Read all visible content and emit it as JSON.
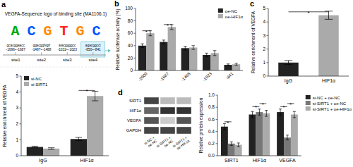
{
  "chart_data": [
    {
      "type": "sequence_logo",
      "title": "a",
      "subtitle": "VEGFA-Sequence logo of binding site (MA1106.1)",
      "categories": [
        "A",
        "C",
        "G",
        "T",
        "G",
        "C"
      ],
      "colors": [
        "#00aa00",
        "#0055ff",
        "#ff8800",
        "#ff2222",
        "#ff8800",
        "#0055ff"
      ]
    },
    {
      "type": "site_map",
      "categories": [
        "site1",
        "site2",
        "site3",
        "site4"
      ],
      "annotations": [
        "gcacggaacc\n-1696~-1687",
        "ggacggNgtf\n-1497~-1488",
        "atacggggcc\n-1032~-1023",
        "agacggcct\n-850~-841"
      ]
    },
    {
      "type": "bar",
      "title": "b",
      "categories": [
        "-2000",
        "-1687",
        "-1488",
        "-1023",
        "-841"
      ],
      "series": [
        {
          "name": "oe-NC",
          "color": "#222222",
          "values": [
            40,
            46,
            36,
            25,
            9
          ],
          "errors": [
            3,
            3,
            3,
            3,
            1.5
          ]
        },
        {
          "name": "oe-HIF1α",
          "color": "#aaaaaa",
          "values": [
            60,
            70,
            37,
            28,
            10
          ],
          "errors": [
            4,
            4,
            3,
            4,
            1.5
          ]
        }
      ],
      "ylabel": "Relative luciferase activity (%)",
      "ylim": [
        0,
        100
      ],
      "yticks": [
        0,
        20,
        40,
        60,
        80,
        100
      ],
      "legend": "upper right",
      "grid": false,
      "annotations": [
        {
          "text": "*",
          "categories": [
            "-2000"
          ],
          "y": 64
        },
        {
          "text": "*",
          "categories": [
            "-1687"
          ],
          "y": 74
        }
      ]
    },
    {
      "type": "bar",
      "title": "c",
      "categories": [
        "IgG",
        "HIF1α"
      ],
      "values": [
        1.0,
        4.5
      ],
      "errors": [
        0.15,
        0.3
      ],
      "colors": [
        "#222222",
        "#aaaaaa"
      ],
      "ylabel": "Relative enrichment of VEGFA",
      "ylim": [
        0,
        5
      ],
      "yticks": [
        0,
        1,
        2,
        3,
        4,
        5
      ],
      "grid": false,
      "annotations": [
        {
          "text": "*",
          "categories": [
            "IgG",
            "HIF1α"
          ],
          "y": 4.75
        }
      ]
    },
    {
      "type": "bar",
      "categories": [
        "IgG",
        "HIF1α"
      ],
      "series": [
        {
          "name": "si-NC",
          "color": "#222222",
          "values": [
            0.55,
            1.05
          ],
          "errors": [
            0.05,
            0.1
          ]
        },
        {
          "name": "si-SIRT1",
          "color": "#aaaaaa",
          "values": [
            0.45,
            3.75
          ],
          "errors": [
            0.05,
            0.3
          ]
        }
      ],
      "ylabel": "Relative enrichment of VEGFA",
      "ylim": [
        0,
        5
      ],
      "yticks": [
        0,
        1,
        2,
        3,
        4,
        5
      ],
      "legend": "upper left",
      "grid": false,
      "annotations": [
        {
          "text": "*",
          "categories": [
            "HIF1α"
          ],
          "y": 4.1
        }
      ]
    },
    {
      "type": "western_blot",
      "title": "d",
      "categories": [
        "SIRT1",
        "HIF1α",
        "VEGFA",
        "GAPDH"
      ],
      "series": [
        {
          "name": "si-NC +\noe-NC",
          "colors": [
            "#444444",
            "#666666",
            "#555555",
            "#444444"
          ]
        },
        {
          "name": "si-SIRT1 +\noe-NC",
          "colors": [
            "#bbbbbb",
            "#333333",
            "#cccccc",
            "#444444"
          ]
        },
        {
          "name": "si-SIRT1 +\noe-HIF1α",
          "colors": [
            "#bbbbbb",
            "#333333",
            "#555555",
            "#444444"
          ]
        }
      ]
    },
    {
      "type": "bar",
      "categories": [
        "SIRT1",
        "HIF1α",
        "VEGFA"
      ],
      "series": [
        {
          "name": "si-NC + oe-NC",
          "color": "#222222",
          "values": [
            0.48,
            0.68,
            0.72
          ],
          "errors": [
            0.05,
            0.05,
            0.05
          ]
        },
        {
          "name": "si-SIRT1 + oe-NC",
          "color": "#777777",
          "values": [
            0.2,
            0.72,
            0.3
          ],
          "errors": [
            0.03,
            0.05,
            0.04
          ]
        },
        {
          "name": "si-SIRT1 + oe-HIF1α",
          "color": "#aaaaaa",
          "values": [
            0.18,
            0.7,
            0.68
          ],
          "errors": [
            0.03,
            0.05,
            0.05
          ]
        }
      ],
      "ylabel": "Relative protein expression",
      "ylim": [
        0,
        1.0
      ],
      "yticks": [
        {
          "value": 0,
          "label": "0.0"
        },
        0.2,
        0.4,
        0.6,
        0.8,
        {
          "value": 1.0,
          "label": "1.0"
        }
      ],
      "legend": "upper right",
      "grid": false,
      "annotations": [
        {
          "text": "*",
          "categories": [
            "SIRT1"
          ],
          "series": [
            "si-NC + oe-NC",
            "si-SIRT1 + oe-NC"
          ],
          "y": 0.56
        },
        {
          "text": "*",
          "categories": [
            "HIF1α"
          ],
          "series": [
            "si-NC + oe-NC",
            "si-SIRT1 + oe-NC"
          ],
          "y": 0.81
        },
        {
          "text": "*",
          "categories": [
            "HIF1α"
          ],
          "series": [
            "si-SIRT1 + oe-NC",
            "si-SIRT1 + oe-HIF1α"
          ],
          "y": 0.86
        },
        {
          "text": "*",
          "categories": [
            "VEGFA"
          ],
          "series": [
            "si-NC + oe-NC",
            "si-SIRT1 + oe-NC"
          ],
          "y": 0.81
        },
        {
          "text": "*",
          "categories": [
            "VEGFA"
          ],
          "series": [
            "si-SIRT1 + oe-NC",
            "si-SIRT1 + oe-HIF1α"
          ],
          "y": 0.86
        }
      ]
    }
  ]
}
